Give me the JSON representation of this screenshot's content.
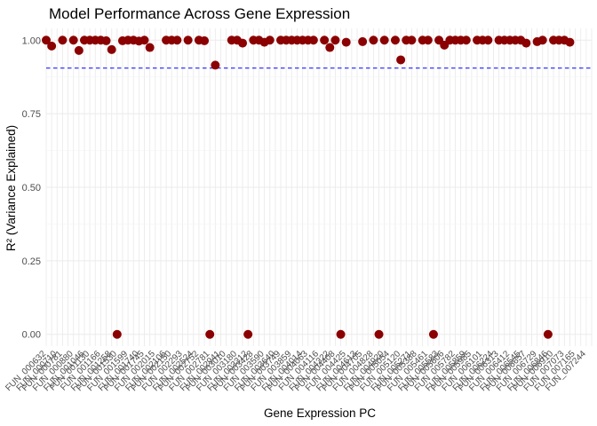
{
  "chart_data": {
    "type": "scatter",
    "title": "Model Performance Across Gene Expression",
    "xlabel": "Gene Expression PC",
    "ylabel": "R² (Variance Explained)",
    "ylim": [
      -0.04,
      1.04
    ],
    "yticks": [
      0.0,
      0.25,
      0.5,
      0.75,
      1.0
    ],
    "ytick_labels": [
      "0.00",
      "0.25",
      "0.50",
      "0.75",
      "1.00"
    ],
    "reference_line": {
      "y": 0.905,
      "style": "dashed",
      "color": "#0000ff"
    },
    "point_color": "#8b0000",
    "grid": true,
    "x_categories_count": 101,
    "x_tick_labels": [
      "FUN_000632",
      "FUN_000710",
      "FUN_000781",
      "FUN_000880",
      "FUN_001046",
      "FUN_001130",
      "FUN_001166",
      "FUN_001258",
      "FUN_001530",
      "FUN_001599",
      "FUN_001740",
      "FUN_001745",
      "FUN_002015",
      "FUN_002106",
      "FUN_002150",
      "FUN_002293",
      "FUN_002524",
      "FUN_002752",
      "FUN_002781",
      "FUN_002941",
      "FUN_003010",
      "FUN_003180",
      "FUN_003312",
      "FUN_003428",
      "FUN_003590",
      "FUN_003640",
      "FUN_003749",
      "FUN_003859",
      "FUN_004014",
      "FUN_004063",
      "FUN_004116",
      "FUN_004322",
      "FUN_004408",
      "FUN_004425",
      "FUN_004613",
      "FUN_004705",
      "FUN_004828",
      "FUN_004920",
      "FUN_005054",
      "FUN_005120",
      "FUN_005271",
      "FUN_005388",
      "FUN_005461",
      "FUN_005583",
      "FUN_005606",
      "FUN_005782",
      "FUN_005859",
      "FUN_005985",
      "FUN_006101",
      "FUN_006224",
      "FUN_006313",
      "FUN_006412",
      "FUN_006545",
      "FUN_006657",
      "FUN_006729",
      "FUN_006846",
      "FUN_006910",
      "FUN_007073",
      "FUN_007165",
      "FUN_007244"
    ],
    "points": [
      {
        "x": 1,
        "y": 1.0
      },
      {
        "x": 2,
        "y": 0.98
      },
      {
        "x": 4,
        "y": 1.0
      },
      {
        "x": 6,
        "y": 1.0
      },
      {
        "x": 7,
        "y": 0.965
      },
      {
        "x": 8,
        "y": 1.0
      },
      {
        "x": 9,
        "y": 1.0
      },
      {
        "x": 10,
        "y": 1.0
      },
      {
        "x": 11,
        "y": 1.0
      },
      {
        "x": 12,
        "y": 0.998
      },
      {
        "x": 13,
        "y": 0.968
      },
      {
        "x": 14,
        "y": 0.0
      },
      {
        "x": 15,
        "y": 0.998
      },
      {
        "x": 16,
        "y": 1.0
      },
      {
        "x": 17,
        "y": 1.0
      },
      {
        "x": 18,
        "y": 0.997
      },
      {
        "x": 19,
        "y": 1.0
      },
      {
        "x": 20,
        "y": 0.975
      },
      {
        "x": 23,
        "y": 1.0
      },
      {
        "x": 24,
        "y": 1.0
      },
      {
        "x": 25,
        "y": 1.0
      },
      {
        "x": 27,
        "y": 1.0
      },
      {
        "x": 29,
        "y": 1.0
      },
      {
        "x": 30,
        "y": 0.998
      },
      {
        "x": 31,
        "y": 0.0
      },
      {
        "x": 32,
        "y": 0.915
      },
      {
        "x": 35,
        "y": 1.0
      },
      {
        "x": 36,
        "y": 1.0
      },
      {
        "x": 37,
        "y": 0.99
      },
      {
        "x": 38,
        "y": 0.0
      },
      {
        "x": 39,
        "y": 1.0
      },
      {
        "x": 40,
        "y": 1.0
      },
      {
        "x": 41,
        "y": 0.993
      },
      {
        "x": 42,
        "y": 1.0
      },
      {
        "x": 44,
        "y": 1.0
      },
      {
        "x": 45,
        "y": 1.0
      },
      {
        "x": 46,
        "y": 1.0
      },
      {
        "x": 47,
        "y": 1.0
      },
      {
        "x": 48,
        "y": 1.0
      },
      {
        "x": 49,
        "y": 1.0
      },
      {
        "x": 50,
        "y": 1.0
      },
      {
        "x": 52,
        "y": 1.0
      },
      {
        "x": 53,
        "y": 0.975
      },
      {
        "x": 54,
        "y": 1.0
      },
      {
        "x": 55,
        "y": 0.0
      },
      {
        "x": 56,
        "y": 0.993
      },
      {
        "x": 59,
        "y": 0.995
      },
      {
        "x": 61,
        "y": 1.0
      },
      {
        "x": 62,
        "y": 0.0
      },
      {
        "x": 63,
        "y": 1.0
      },
      {
        "x": 65,
        "y": 1.0
      },
      {
        "x": 66,
        "y": 0.933
      },
      {
        "x": 67,
        "y": 1.0
      },
      {
        "x": 68,
        "y": 1.0
      },
      {
        "x": 70,
        "y": 1.0
      },
      {
        "x": 71,
        "y": 1.0
      },
      {
        "x": 72,
        "y": 0.0
      },
      {
        "x": 73,
        "y": 1.0
      },
      {
        "x": 74,
        "y": 0.983
      },
      {
        "x": 75,
        "y": 1.0
      },
      {
        "x": 76,
        "y": 1.0
      },
      {
        "x": 77,
        "y": 1.0
      },
      {
        "x": 78,
        "y": 1.0
      },
      {
        "x": 80,
        "y": 1.0
      },
      {
        "x": 81,
        "y": 1.0
      },
      {
        "x": 82,
        "y": 1.0
      },
      {
        "x": 84,
        "y": 1.0
      },
      {
        "x": 85,
        "y": 1.0
      },
      {
        "x": 86,
        "y": 1.0
      },
      {
        "x": 87,
        "y": 1.0
      },
      {
        "x": 88,
        "y": 1.0
      },
      {
        "x": 89,
        "y": 0.99
      },
      {
        "x": 91,
        "y": 0.995
      },
      {
        "x": 92,
        "y": 1.0
      },
      {
        "x": 93,
        "y": 0.0
      },
      {
        "x": 94,
        "y": 1.0
      },
      {
        "x": 95,
        "y": 1.0
      },
      {
        "x": 96,
        "y": 1.0
      },
      {
        "x": 97,
        "y": 0.993
      }
    ]
  }
}
